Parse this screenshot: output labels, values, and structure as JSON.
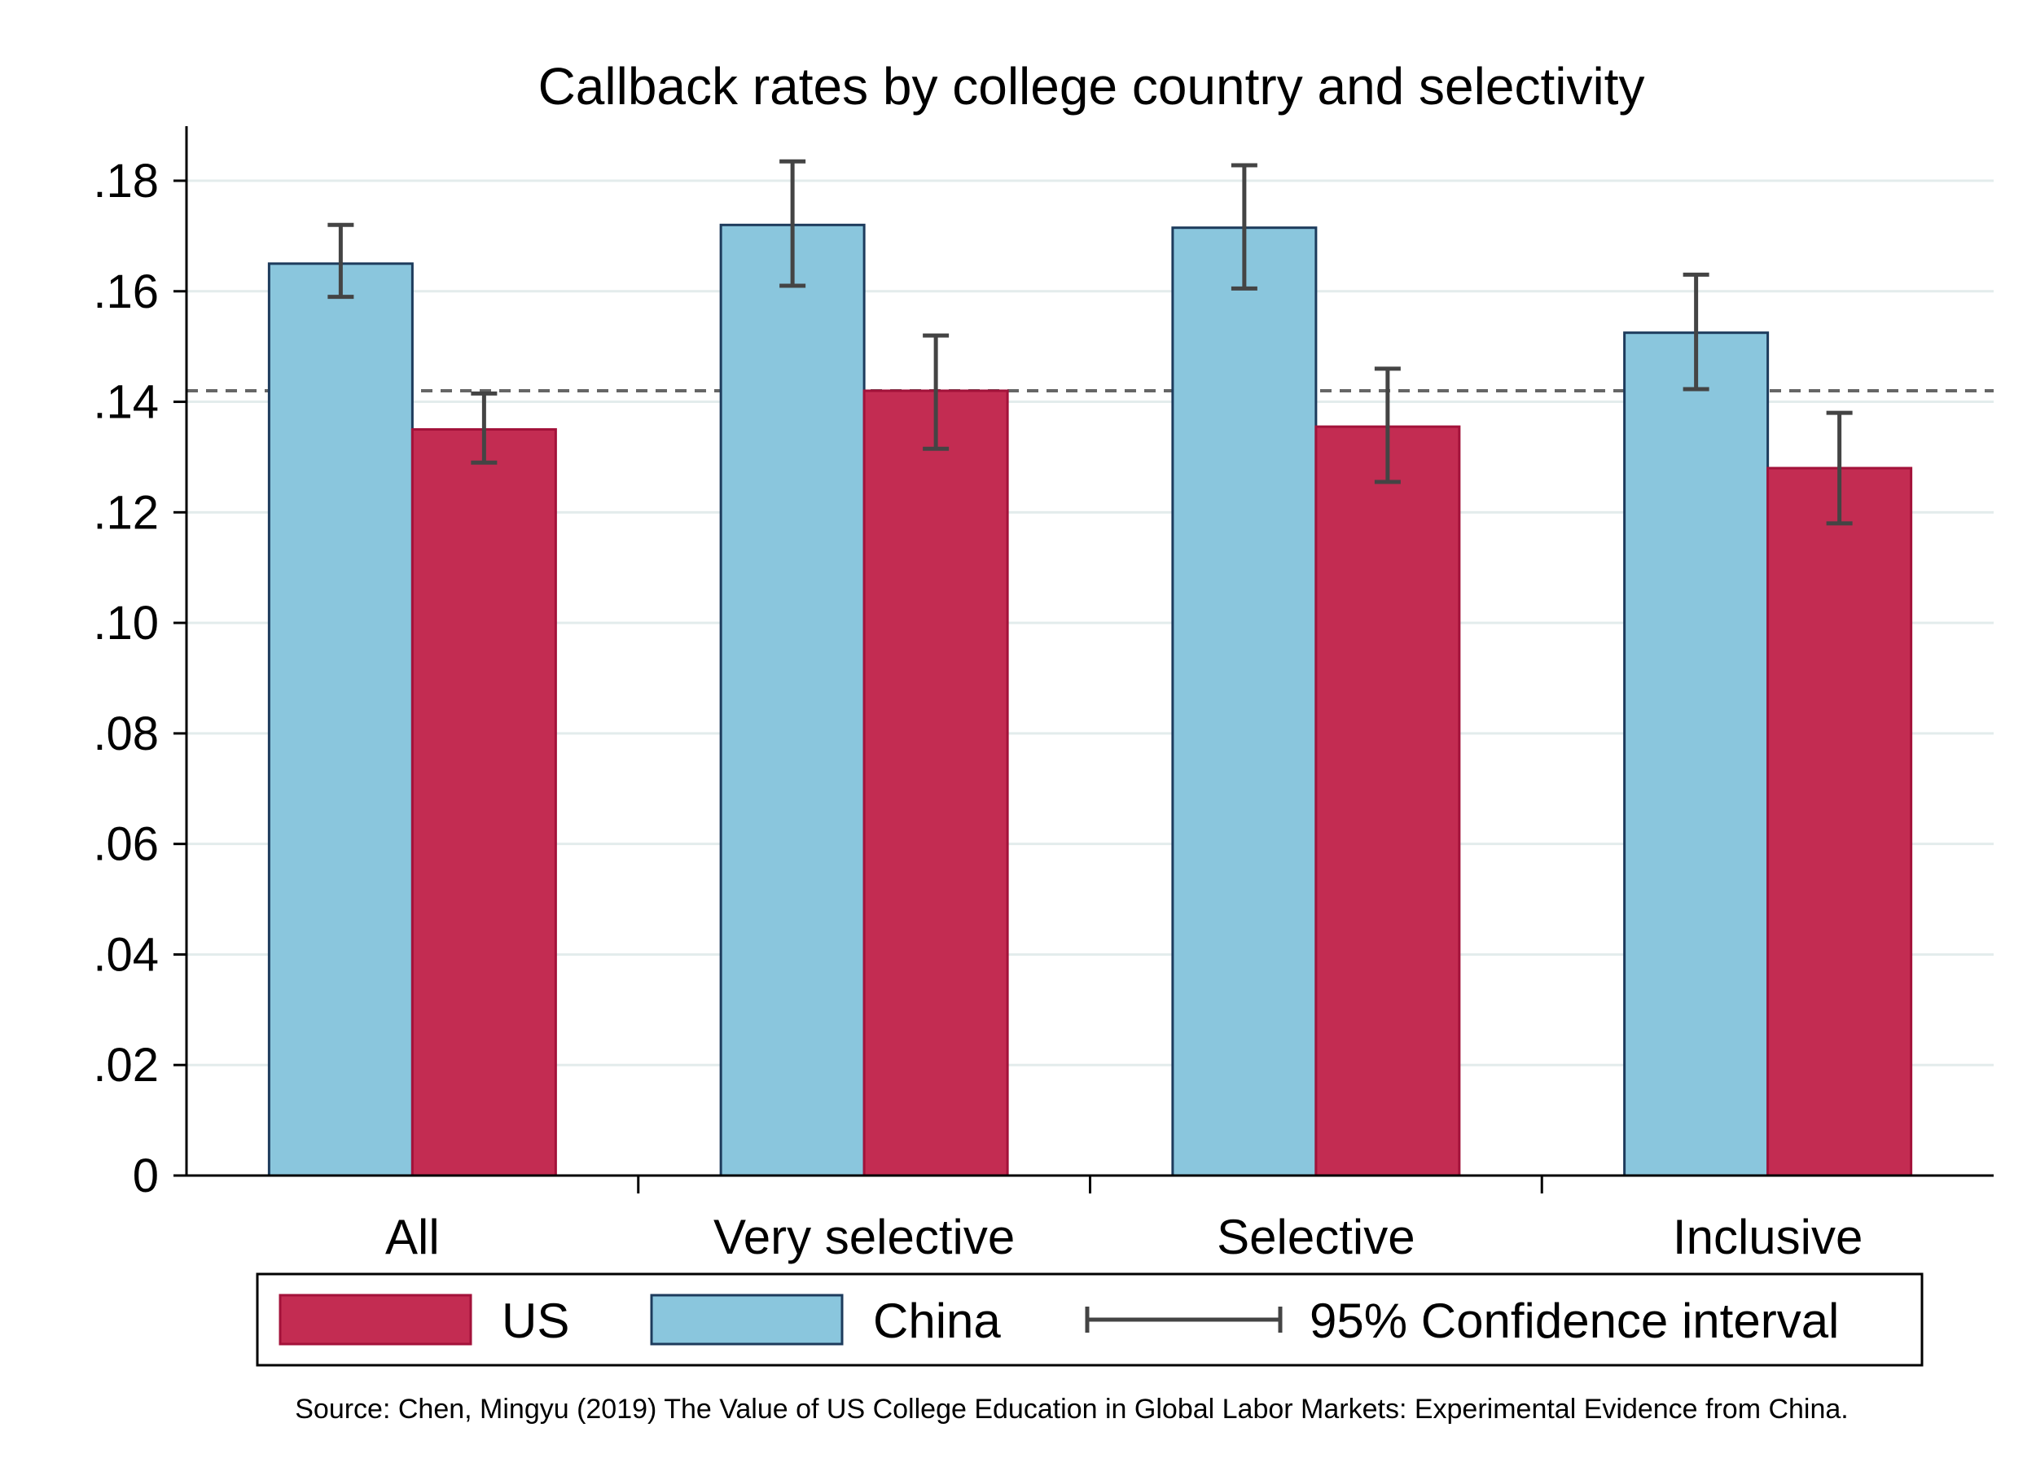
{
  "chart_data": {
    "type": "bar",
    "title": "Callback rates by college country and selectivity",
    "xlabel": "",
    "ylabel": "",
    "categories": [
      "All",
      "Very selective",
      "Selective",
      "Inclusive"
    ],
    "ylim": [
      0,
      0.19
    ],
    "yticks": [
      0,
      0.02,
      0.04,
      0.06,
      0.08,
      0.1,
      0.12,
      0.14,
      0.16,
      0.18
    ],
    "ytick_labels": [
      "0",
      ".02",
      ".04",
      ".06",
      ".08",
      ".10",
      ".12",
      ".14",
      ".16",
      ".18"
    ],
    "grid": true,
    "reference_line": 0.142,
    "series": [
      {
        "name": "China",
        "color": "#8ac6dd",
        "edge_color": "#1d3b5c",
        "values": [
          0.165,
          0.172,
          0.1715,
          0.1525
        ],
        "ci_low": [
          0.159,
          0.161,
          0.1605,
          0.1423
        ],
        "ci_high": [
          0.172,
          0.1835,
          0.1828,
          0.163
        ]
      },
      {
        "name": "US",
        "color": "#c32c52",
        "edge_color": "#a3123a",
        "values": [
          0.135,
          0.142,
          0.1355,
          0.128
        ],
        "ci_low": [
          0.129,
          0.1315,
          0.1255,
          0.118
        ],
        "ci_high": [
          0.1415,
          0.152,
          0.146,
          0.138
        ]
      }
    ],
    "legend": {
      "position": "bottom",
      "items": [
        "US",
        "China",
        "95% Confidence interval"
      ]
    },
    "source_note": "Source: Chen, Mingyu (2019) The Value of US College Education in Global Labor Markets: Experimental Evidence from China."
  }
}
